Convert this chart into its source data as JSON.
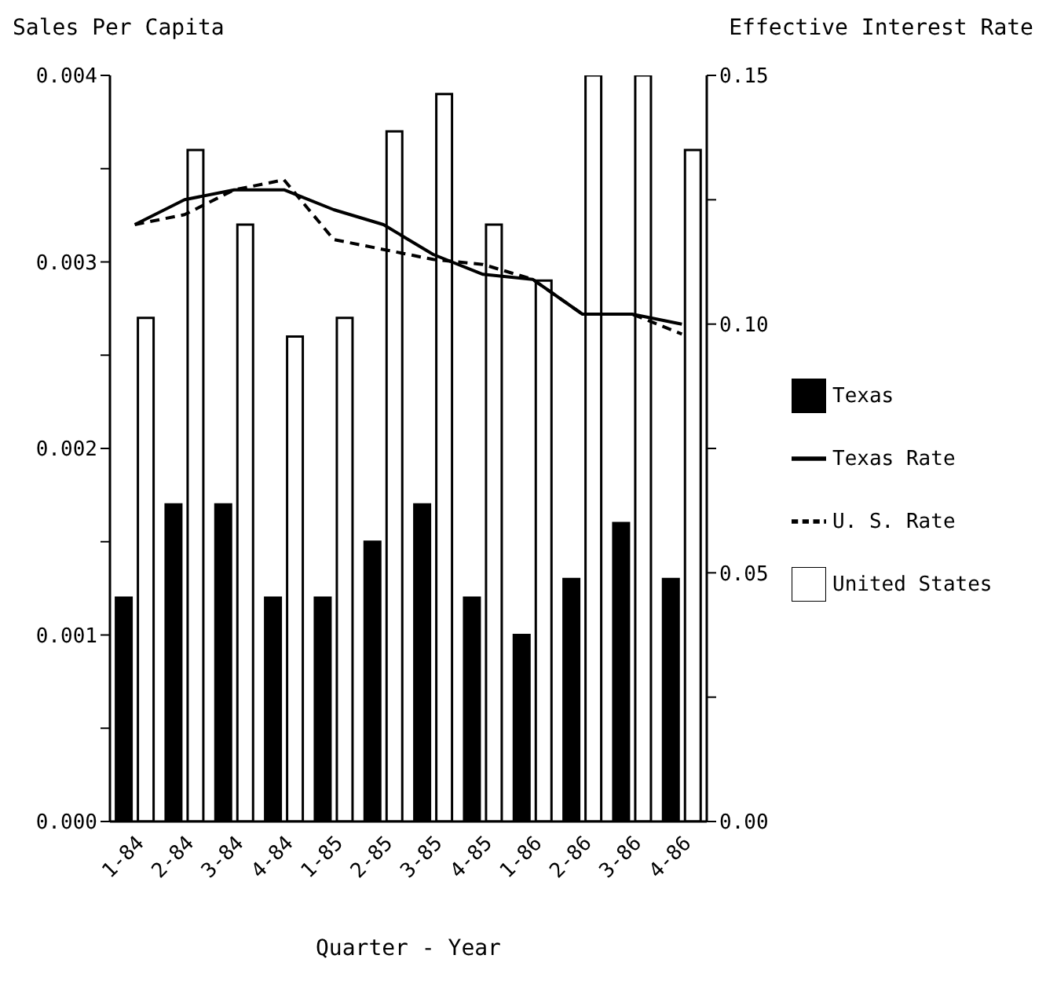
{
  "chart_data": {
    "type": "bar",
    "ylabel": "Sales Per Capita",
    "y2label": "Effective Interest Rate",
    "xlabel": "Quarter - Year",
    "categories": [
      "1-84",
      "2-84",
      "3-84",
      "4-84",
      "1-85",
      "2-85",
      "3-85",
      "4-85",
      "1-86",
      "2-86",
      "3-86",
      "4-86"
    ],
    "series": [
      {
        "name": "Texas",
        "color": "#000000",
        "values": [
          0.0012,
          0.0017,
          0.0017,
          0.0012,
          0.0012,
          0.0015,
          0.0017,
          0.0012,
          0.001,
          0.0013,
          0.0016,
          0.0013
        ]
      },
      {
        "name": "United States",
        "color": "#ffffff",
        "values": [
          0.0027,
          0.0036,
          0.0032,
          0.0026,
          0.0027,
          0.0037,
          0.0039,
          0.0032,
          0.0029,
          0.004,
          0.004,
          0.0036
        ]
      },
      {
        "name": "Texas Rate",
        "type": "line",
        "axis": "y2",
        "color": "#000000",
        "line_style": "solid",
        "values": [
          0.12,
          0.125,
          0.127,
          0.127,
          0.123,
          0.12,
          0.114,
          0.11,
          0.109,
          0.102,
          0.102,
          0.1
        ]
      },
      {
        "name": "U. S. Rate",
        "type": "line",
        "axis": "y2",
        "color": "#000000",
        "line_style": "dashed",
        "values": [
          0.12,
          0.122,
          0.127,
          0.129,
          0.117,
          0.115,
          0.113,
          0.112,
          0.109,
          0.102,
          0.102,
          0.098
        ]
      }
    ],
    "ylim": [
      0,
      0.004
    ],
    "yticks": [
      {
        "value": 0,
        "label": "0.000"
      },
      {
        "value": 0.0005,
        "label": null
      },
      {
        "value": 0.001,
        "label": "0.001"
      },
      {
        "value": 0.0015,
        "label": null
      },
      {
        "value": 0.002,
        "label": "0.002"
      },
      {
        "value": 0.0025,
        "label": null
      },
      {
        "value": 0.003,
        "label": "0.003"
      },
      {
        "value": 0.0035,
        "label": null
      },
      {
        "value": 0.004,
        "label": "0.004"
      }
    ],
    "y2lim": [
      0,
      0.15
    ],
    "y2ticks": [
      {
        "value": 0,
        "label": "0.00"
      },
      {
        "value": 0.025,
        "label": null
      },
      {
        "value": 0.05,
        "label": "0.05"
      },
      {
        "value": 0.075,
        "label": null
      },
      {
        "value": 0.1,
        "label": "0.10"
      },
      {
        "value": 0.125,
        "label": null
      },
      {
        "value": 0.15,
        "label": "0.15"
      }
    ],
    "marker": "none",
    "grid": false,
    "legend": "right"
  }
}
